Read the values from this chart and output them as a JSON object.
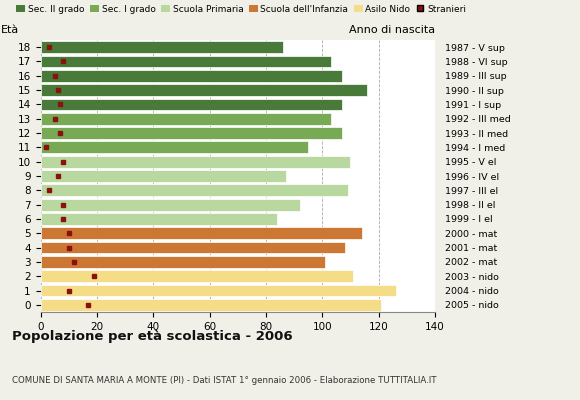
{
  "ages": [
    18,
    17,
    16,
    15,
    14,
    13,
    12,
    11,
    10,
    9,
    8,
    7,
    6,
    5,
    4,
    3,
    2,
    1,
    0
  ],
  "bar_values": [
    86,
    103,
    107,
    116,
    107,
    103,
    107,
    95,
    110,
    87,
    109,
    92,
    84,
    114,
    108,
    101,
    111,
    126,
    121
  ],
  "stranieri": [
    3,
    8,
    5,
    6,
    7,
    5,
    7,
    2,
    8,
    6,
    3,
    8,
    8,
    10,
    10,
    12,
    19,
    10,
    17
  ],
  "anno_nascita": [
    "1987 - V sup",
    "1988 - VI sup",
    "1989 - III sup",
    "1990 - II sup",
    "1991 - I sup",
    "1992 - III med",
    "1993 - II med",
    "1994 - I med",
    "1995 - V el",
    "1996 - IV el",
    "1997 - III el",
    "1998 - II el",
    "1999 - I el",
    "2000 - mat",
    "2001 - mat",
    "2002 - mat",
    "2003 - nido",
    "2004 - nido",
    "2005 - nido"
  ],
  "school_types": {
    "sec2": {
      "ages": [
        18,
        17,
        16,
        15,
        14
      ],
      "color": "#4a7a3a"
    },
    "sec1": {
      "ages": [
        13,
        12,
        11
      ],
      "color": "#78aa55"
    },
    "primaria": {
      "ages": [
        10,
        9,
        8,
        7,
        6
      ],
      "color": "#b8d8a0"
    },
    "infanzia": {
      "ages": [
        5,
        4,
        3
      ],
      "color": "#cc7733"
    },
    "nido": {
      "ages": [
        2,
        1,
        0
      ],
      "color": "#f5dd88"
    }
  },
  "colors": {
    "sec2": "#4a7a3a",
    "sec1": "#78aa55",
    "primaria": "#b8d8a0",
    "infanzia": "#cc7733",
    "nido": "#f5dd88",
    "stranieri": "#8b1010"
  },
  "legend_labels": [
    "Sec. II grado",
    "Sec. I grado",
    "Scuola Primaria",
    "Scuola dell'Infanzia",
    "Asilo Nido",
    "Stranieri"
  ],
  "title": "Popolazione per età scolastica - 2006",
  "subtitle": "COMUNE DI SANTA MARIA A MONTE (PI) - Dati ISTAT 1° gennaio 2006 - Elaborazione TUTTITALIA.IT",
  "label_eta": "Età",
  "label_anno": "Anno di nascita",
  "xlim": [
    0,
    140
  ],
  "xticks": [
    0,
    20,
    40,
    60,
    80,
    100,
    120,
    140
  ],
  "bar_height": 0.82,
  "background_color": "#f0f0e8",
  "plot_bg": "#ffffff",
  "grid_color": "#aaaaaa"
}
